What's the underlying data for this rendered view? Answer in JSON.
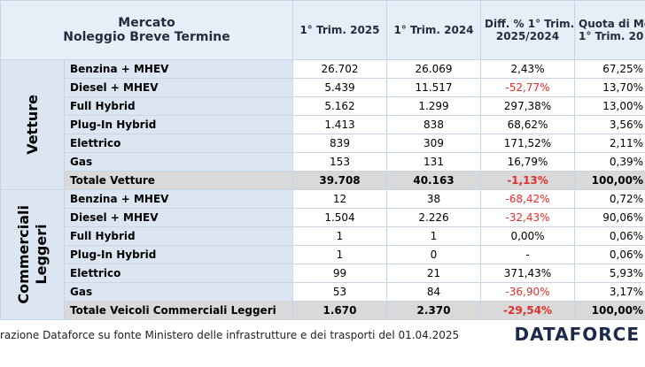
{
  "header": {
    "title": [
      "Mercato",
      "Noleggio Breve Termine"
    ],
    "columns": [
      [
        "1° Trim. 2025"
      ],
      [
        "1° Trim. 2024"
      ],
      [
        "Diff. % 1° Trim.",
        "2025/2024"
      ],
      [
        "Quota di Me",
        "1° Trim. 20"
      ]
    ]
  },
  "groups": [
    {
      "label": [
        "Vetture"
      ],
      "rows": [
        [
          "Benzina + MHEV",
          "26.702",
          "26.069",
          "2,43%",
          "67,25%"
        ],
        [
          "Diesel + MHEV",
          "5.439",
          "11.517",
          "-52,77%",
          "13,70%"
        ],
        [
          "Full Hybrid",
          "5.162",
          "1.299",
          "297,38%",
          "13,00%"
        ],
        [
          "Plug-In Hybrid",
          "1.413",
          "838",
          "68,62%",
          "3,56%"
        ],
        [
          "Elettrico",
          "839",
          "309",
          "171,52%",
          "2,11%"
        ],
        [
          "Gas",
          "153",
          "131",
          "16,79%",
          "0,39%"
        ]
      ],
      "total": [
        "Totale Vetture",
        "39.708",
        "40.163",
        "-1,13%",
        "100,00%"
      ]
    },
    {
      "label": [
        "Commerciali",
        "Leggeri"
      ],
      "rows": [
        [
          "Benzina + MHEV",
          "12",
          "38",
          "-68,42%",
          "0,72%"
        ],
        [
          "Diesel + MHEV",
          "1.504",
          "2.226",
          "-32,43%",
          "90,06%"
        ],
        [
          "Full Hybrid",
          "1",
          "1",
          "0,00%",
          "0,06%"
        ],
        [
          "Plug-In Hybrid",
          "1",
          "0",
          "-",
          "0,06%"
        ],
        [
          "Elettrico",
          "99",
          "21",
          "371,43%",
          "5,93%"
        ],
        [
          "Gas",
          "53",
          "84",
          "-36,90%",
          "3,17%"
        ]
      ],
      "total": [
        "Totale Veicoli Commerciali Leggeri",
        "1.670",
        "2.370",
        "-29,54%",
        "100,00%"
      ]
    }
  ],
  "footer": {
    "source": "razione Dataforce su fonte Ministero delle infrastrutture e dei trasporti del 01.04.2025",
    "logo": "DATAFORCE"
  }
}
